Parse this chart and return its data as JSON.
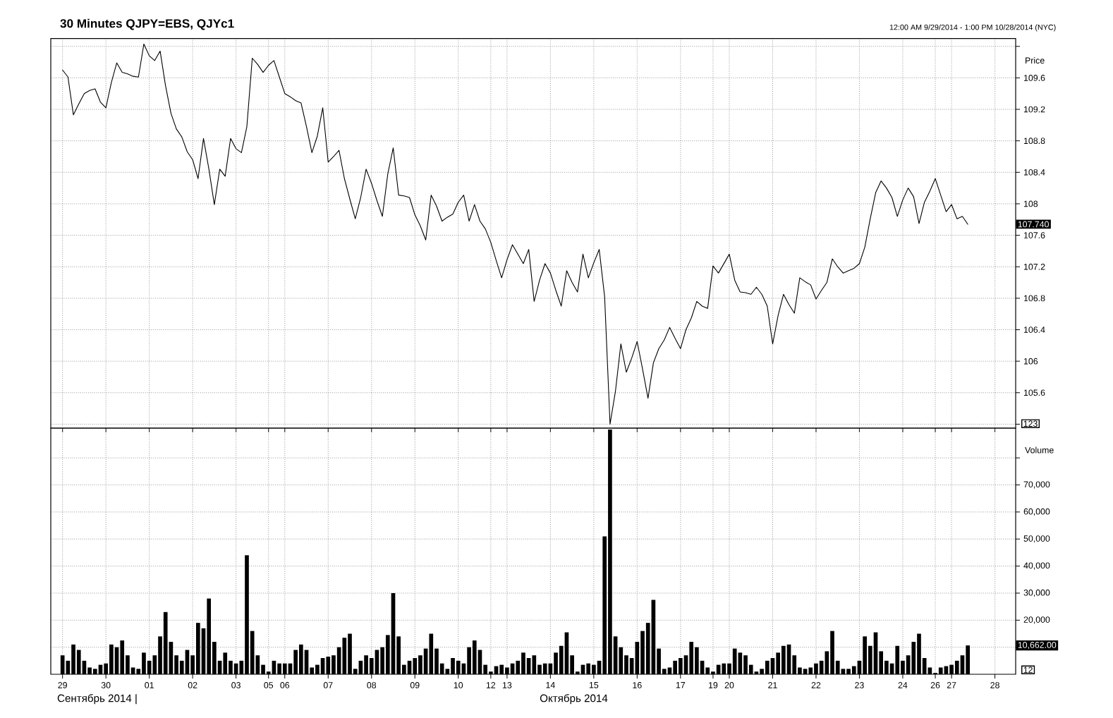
{
  "chart_data": [
    {
      "type": "line",
      "title": "30 Minutes QJPY=EBS, QJYc1",
      "subtitle": "12:00 AM 9/29/2014 - 1:00 PM 10/28/2014 (NYC)",
      "ylabel": "Price",
      "categories": [
        "29",
        null,
        null,
        null,
        null,
        null,
        null,
        null,
        "30",
        null,
        null,
        null,
        null,
        null,
        null,
        null,
        "01",
        null,
        null,
        null,
        null,
        null,
        null,
        null,
        "02",
        null,
        null,
        null,
        null,
        null,
        null,
        null,
        "03",
        null,
        null,
        null,
        null,
        null,
        "05",
        null,
        null,
        "06",
        null,
        null,
        null,
        null,
        null,
        null,
        null,
        "07",
        null,
        null,
        null,
        null,
        null,
        null,
        null,
        "08",
        null,
        null,
        null,
        null,
        null,
        null,
        null,
        "09",
        null,
        null,
        null,
        null,
        null,
        null,
        null,
        "10",
        null,
        null,
        null,
        null,
        null,
        "12",
        null,
        null,
        "13",
        null,
        null,
        null,
        null,
        null,
        null,
        null,
        "14",
        null,
        null,
        null,
        null,
        null,
        null,
        null,
        "15",
        null,
        null,
        null,
        null,
        null,
        null,
        null,
        "16",
        null,
        null,
        null,
        null,
        null,
        null,
        null,
        "17",
        null,
        null,
        null,
        null,
        null,
        "19",
        null,
        null,
        "20",
        null,
        null,
        null,
        null,
        null,
        null,
        null,
        "21",
        null,
        null,
        null,
        null,
        null,
        null,
        null,
        "22",
        null,
        null,
        null,
        null,
        null,
        null,
        null,
        "23",
        null,
        null,
        null,
        null,
        null,
        null,
        null,
        "24",
        null,
        null,
        null,
        null,
        null,
        "26",
        null,
        null,
        "27",
        null,
        null,
        null,
        null,
        null,
        null,
        null,
        "28"
      ],
      "values": [
        109.7,
        109.61,
        109.13,
        109.27,
        109.4,
        109.44,
        109.46,
        109.29,
        109.22,
        109.54,
        109.79,
        109.67,
        109.65,
        109.62,
        109.61,
        110.03,
        109.88,
        109.82,
        109.94,
        109.5,
        109.15,
        108.95,
        108.85,
        108.66,
        108.56,
        108.32,
        108.83,
        108.44,
        107.99,
        108.44,
        108.35,
        108.83,
        108.7,
        108.65,
        108.98,
        109.85,
        109.77,
        109.67,
        109.76,
        109.82,
        109.61,
        109.4,
        109.36,
        109.31,
        109.28,
        108.98,
        108.65,
        108.86,
        109.22,
        108.53,
        108.6,
        108.68,
        108.32,
        108.06,
        107.81,
        108.08,
        108.44,
        108.26,
        108.04,
        107.84,
        108.38,
        108.71,
        108.11,
        108.1,
        108.08,
        107.86,
        107.72,
        107.54,
        108.11,
        107.97,
        107.78,
        107.83,
        107.87,
        108.02,
        108.11,
        107.78,
        107.99,
        107.78,
        107.68,
        107.51,
        107.28,
        107.06,
        107.29,
        107.48,
        107.36,
        107.24,
        107.42,
        106.76,
        107.03,
        107.24,
        107.12,
        106.9,
        106.7,
        107.15,
        107.0,
        106.88,
        107.36,
        107.06,
        107.25,
        107.42,
        106.82,
        105.2,
        105.62,
        106.22,
        105.86,
        106.04,
        106.25,
        105.9,
        105.53,
        105.98,
        106.16,
        106.27,
        106.43,
        106.29,
        106.16,
        106.4,
        106.55,
        106.76,
        106.7,
        106.67,
        107.21,
        107.12,
        107.24,
        107.36,
        107.03,
        106.88,
        106.87,
        106.85,
        106.94,
        106.85,
        106.7,
        106.22,
        106.58,
        106.85,
        106.72,
        106.61,
        107.06,
        107.01,
        106.97,
        106.79,
        106.9,
        107.0,
        107.3,
        107.2,
        107.12,
        107.15,
        107.18,
        107.24,
        107.45,
        107.81,
        108.14,
        108.29,
        108.2,
        108.08,
        107.84,
        108.05,
        108.2,
        108.09,
        107.75,
        108.02,
        108.16,
        108.32,
        108.11,
        107.9,
        107.99,
        107.81,
        107.84,
        107.74,
        null,
        null,
        null,
        null,
        null
      ],
      "color": "#000000",
      "ylim": [
        105.15,
        110.1
      ],
      "yticks": [
        {
          "value": 105.2,
          "label": null
        },
        105.6,
        106,
        106.4,
        106.8,
        107.2,
        107.6,
        108,
        108.4,
        108.8,
        109.2,
        109.6,
        {
          "value": 110,
          "label": null
        }
      ],
      "grid": true,
      "tick_labels": "y",
      "annotations": [
        "107.740",
        "123"
      ]
    },
    {
      "type": "bar",
      "ylabel": "Volume",
      "categories": [
        "29",
        null,
        null,
        null,
        null,
        null,
        null,
        null,
        "30",
        null,
        null,
        null,
        null,
        null,
        null,
        null,
        "01",
        null,
        null,
        null,
        null,
        null,
        null,
        null,
        "02",
        null,
        null,
        null,
        null,
        null,
        null,
        null,
        "03",
        null,
        null,
        null,
        null,
        null,
        "05",
        null,
        null,
        "06",
        null,
        null,
        null,
        null,
        null,
        null,
        null,
        "07",
        null,
        null,
        null,
        null,
        null,
        null,
        null,
        "08",
        null,
        null,
        null,
        null,
        null,
        null,
        null,
        "09",
        null,
        null,
        null,
        null,
        null,
        null,
        null,
        "10",
        null,
        null,
        null,
        null,
        null,
        "12",
        null,
        null,
        "13",
        null,
        null,
        null,
        null,
        null,
        null,
        null,
        "14",
        null,
        null,
        null,
        null,
        null,
        null,
        null,
        "15",
        null,
        null,
        null,
        null,
        null,
        null,
        null,
        "16",
        null,
        null,
        null,
        null,
        null,
        null,
        null,
        "17",
        null,
        null,
        null,
        null,
        null,
        "19",
        null,
        null,
        "20",
        null,
        null,
        null,
        null,
        null,
        null,
        null,
        "21",
        null,
        null,
        null,
        null,
        null,
        null,
        null,
        "22",
        null,
        null,
        null,
        null,
        null,
        null,
        null,
        "23",
        null,
        null,
        null,
        null,
        null,
        null,
        null,
        "24",
        null,
        null,
        null,
        null,
        null,
        "26",
        null,
        null,
        "27",
        null,
        null,
        null,
        null,
        null,
        null,
        null,
        "28"
      ],
      "values": [
        7000,
        5000,
        11000,
        9000,
        5000,
        2500,
        2000,
        3500,
        4000,
        11000,
        10000,
        12500,
        7000,
        2500,
        2000,
        8000,
        5000,
        7000,
        14000,
        23000,
        12000,
        7000,
        5000,
        9000,
        7000,
        19000,
        17000,
        28000,
        12000,
        5000,
        8000,
        5000,
        4000,
        5000,
        44000,
        16000,
        7000,
        3500,
        1000,
        5000,
        4000,
        4000,
        4000,
        9000,
        11000,
        9000,
        2500,
        3500,
        6000,
        6500,
        7000,
        10000,
        13500,
        15000,
        2000,
        5000,
        7000,
        6000,
        9000,
        10000,
        14500,
        30000,
        14000,
        3500,
        5000,
        6000,
        7000,
        9500,
        15000,
        9500,
        4000,
        2000,
        6000,
        5000,
        4000,
        10000,
        12500,
        9000,
        3500,
        1000,
        3000,
        3500,
        2500,
        4000,
        5000,
        8000,
        6000,
        7000,
        3500,
        4000,
        4000,
        8000,
        10500,
        15500,
        7000,
        1000,
        3500,
        4000,
        3500,
        5000,
        51000,
        90500,
        14000,
        10000,
        7000,
        6000,
        12000,
        16000,
        19000,
        27500,
        9500,
        2000,
        2500,
        5000,
        6000,
        7000,
        12000,
        10000,
        5000,
        2500,
        1000,
        3500,
        4000,
        4000,
        9500,
        8000,
        7000,
        3500,
        1000,
        2000,
        5000,
        6000,
        8000,
        10500,
        11000,
        7000,
        2500,
        2000,
        2500,
        4000,
        5000,
        8500,
        16000,
        5000,
        2000,
        2000,
        3000,
        5000,
        14000,
        10500,
        15500,
        8500,
        5000,
        4000,
        10500,
        5000,
        7000,
        12000,
        15000,
        6000,
        2500,
        500,
        2500,
        3000,
        3500,
        5000,
        7000,
        10662,
        null,
        null,
        null,
        null,
        null
      ],
      "color": "#000000",
      "ylim": [
        0,
        91000
      ],
      "yticks": [
        {
          "value": 10000,
          "label": null
        },
        {
          "value": 20000,
          "label": "20,000"
        },
        {
          "value": 30000,
          "label": "30,000"
        },
        {
          "value": 40000,
          "label": "40,000"
        },
        {
          "value": 50000,
          "label": "50,000"
        },
        {
          "value": 60000,
          "label": "60,000"
        },
        {
          "value": 70000,
          "label": "70,000"
        },
        {
          "value": 80000,
          "label": null
        }
      ],
      "grid": true,
      "annotations": [
        "10,662.00",
        "12",
        "Сентябрь 2014 |",
        "Октябрь 2014"
      ]
    }
  ]
}
